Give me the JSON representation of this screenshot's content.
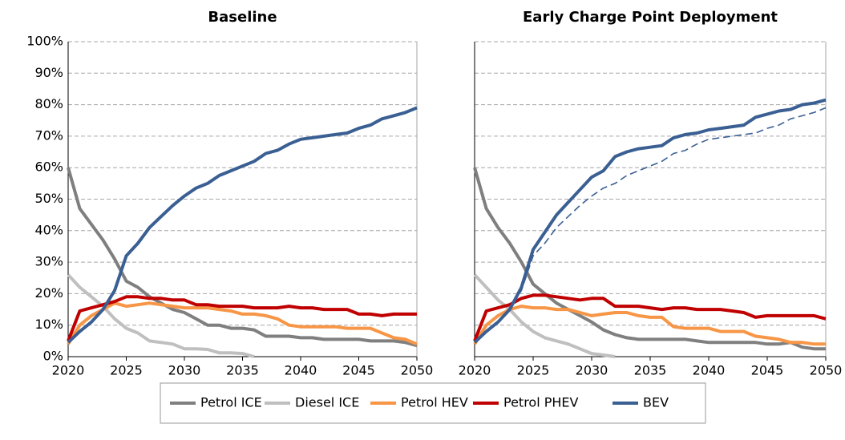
{
  "chart_data": [
    {
      "type": "line",
      "title": "Baseline",
      "x": [
        2020,
        2021,
        2022,
        2023,
        2024,
        2025,
        2026,
        2027,
        2028,
        2029,
        2030,
        2031,
        2032,
        2033,
        2034,
        2035,
        2036,
        2037,
        2038,
        2039,
        2040,
        2041,
        2042,
        2043,
        2044,
        2045,
        2046,
        2047,
        2048,
        2049,
        2050
      ],
      "xlim": [
        2020,
        2050
      ],
      "xticks": [
        2020,
        2025,
        2030,
        2035,
        2040,
        2045,
        2050
      ],
      "ylim": [
        0,
        100
      ],
      "yticks": [
        {
          "value": 0,
          "label": "0%"
        },
        {
          "value": 10,
          "label": "10%"
        },
        {
          "value": 20,
          "label": "20%"
        },
        {
          "value": 30,
          "label": "30%"
        },
        {
          "value": 40,
          "label": "40%"
        },
        {
          "value": 50,
          "label": "50%"
        },
        {
          "value": 60,
          "label": "60%"
        },
        {
          "value": 70,
          "label": "70%"
        },
        {
          "value": 80,
          "label": "80%"
        },
        {
          "value": 90,
          "label": "90%"
        },
        {
          "value": 100,
          "label": "100%"
        }
      ],
      "grid": true,
      "series": [
        {
          "name": "Petrol ICE",
          "color": "#7f7f7f",
          "values": [
            60,
            47,
            42,
            37,
            31,
            24,
            22,
            19,
            17,
            15,
            14,
            12,
            10,
            10,
            9,
            9,
            8.5,
            6.5,
            6.5,
            6.5,
            6,
            6,
            5.5,
            5.5,
            5.5,
            5.5,
            5,
            5,
            5,
            4.5,
            3.5
          ]
        },
        {
          "name": "Diesel ICE",
          "color": "#bfbfbf",
          "values": [
            26,
            22,
            19,
            16,
            12,
            9,
            7.5,
            5,
            4.5,
            4,
            2.5,
            2.5,
            2.3,
            1.2,
            1.2,
            1,
            0,
            null,
            null,
            null,
            null,
            null,
            null,
            null,
            null,
            null,
            null,
            null,
            null,
            null,
            null
          ]
        },
        {
          "name": "Petrol HEV",
          "color": "#f79646",
          "values": [
            4,
            10,
            13,
            15,
            17,
            16,
            16.5,
            17,
            16.5,
            16,
            15.5,
            15.5,
            15.5,
            15,
            14.5,
            13.5,
            13.5,
            13,
            12,
            10,
            9.5,
            9.5,
            9.5,
            9.5,
            9,
            9,
            9,
            7.5,
            6,
            5.5,
            4
          ]
        },
        {
          "name": "Petrol PHEV",
          "color": "#c00000",
          "values": [
            5,
            14.5,
            15.5,
            16.5,
            17.5,
            19,
            19,
            18.5,
            18.5,
            18,
            18,
            16.5,
            16.5,
            16,
            16,
            16,
            15.5,
            15.5,
            15.5,
            16,
            15.5,
            15.5,
            15,
            15,
            15,
            13.5,
            13.5,
            13,
            13.5,
            13.5,
            13.5
          ]
        },
        {
          "name": "BEV",
          "color": "#3a5f93",
          "values": [
            4.5,
            8,
            11,
            15,
            21,
            32,
            36,
            41,
            44.5,
            48,
            51,
            53.5,
            55,
            57.5,
            59,
            60.5,
            62,
            64.5,
            65.5,
            67.5,
            69,
            69.5,
            70,
            70.5,
            71,
            72.5,
            73.5,
            75.5,
            76.5,
            77.5,
            79
          ]
        }
      ]
    },
    {
      "type": "line",
      "title": "Early Charge Point Deployment",
      "x": [
        2020,
        2021,
        2022,
        2023,
        2024,
        2025,
        2026,
        2027,
        2028,
        2029,
        2030,
        2031,
        2032,
        2033,
        2034,
        2035,
        2036,
        2037,
        2038,
        2039,
        2040,
        2041,
        2042,
        2043,
        2044,
        2045,
        2046,
        2047,
        2048,
        2049,
        2050
      ],
      "xlim": [
        2020,
        2050
      ],
      "xticks": [
        2020,
        2025,
        2030,
        2035,
        2040,
        2045,
        2050
      ],
      "ylim": [
        0,
        100
      ],
      "yticks": [
        0,
        10,
        20,
        30,
        40,
        50,
        60,
        70,
        80,
        90,
        100
      ],
      "grid": true,
      "series": [
        {
          "color": "#7f7f7f",
          "values": [
            60,
            47,
            41,
            36,
            30,
            23,
            20,
            17,
            15,
            13,
            11,
            8.5,
            7,
            6,
            5.5,
            5.5,
            5.5,
            5.5,
            5.5,
            5,
            4.5,
            4.5,
            4.5,
            4.5,
            4.5,
            4,
            4,
            4.5,
            3,
            2.5,
            2.5
          ]
        },
        {
          "color": "#bfbfbf",
          "values": [
            26,
            22,
            18,
            15,
            11,
            8,
            6,
            5,
            4,
            2.5,
            1,
            0.5,
            0,
            null,
            null,
            null,
            null,
            null,
            null,
            null,
            null,
            null,
            null,
            null,
            null,
            null,
            null,
            null,
            null,
            null,
            null
          ]
        },
        {
          "color": "#f79646",
          "values": [
            4,
            10,
            13,
            15,
            16,
            15.5,
            15.5,
            15,
            15,
            14,
            13,
            13.5,
            14,
            14,
            13,
            12.5,
            12.5,
            9.5,
            9,
            9,
            9,
            8,
            8,
            8,
            6.5,
            6,
            5.5,
            4.5,
            4.5,
            4,
            4
          ]
        },
        {
          "color": "#c00000",
          "values": [
            5,
            14.5,
            15.5,
            16.5,
            18.5,
            19.5,
            19.5,
            19,
            18.5,
            18,
            18.5,
            18.5,
            16,
            16,
            16,
            15.5,
            15,
            15.5,
            15.5,
            15,
            15,
            15,
            14.5,
            14,
            12.5,
            13,
            13,
            13,
            13,
            13,
            12
          ]
        },
        {
          "color": "#3a5f93",
          "values": [
            4.5,
            8,
            11,
            15,
            22,
            34,
            39.5,
            45,
            49,
            53,
            57,
            59,
            63.5,
            65,
            66,
            66.5,
            67,
            69.5,
            70.5,
            71,
            72,
            72.5,
            73,
            73.5,
            76,
            77,
            78,
            78.5,
            80,
            80.5,
            81.5
          ]
        },
        {
          "color": "#3a5f93",
          "dashed": true,
          "values": [
            4.5,
            8,
            11,
            15,
            21,
            32,
            36,
            41,
            44.5,
            48,
            51,
            53.5,
            55,
            57.5,
            59,
            60.5,
            62,
            64.5,
            65.5,
            67.5,
            69,
            69.5,
            70,
            70.5,
            71,
            72.5,
            73.5,
            75.5,
            76.5,
            77.5,
            79
          ]
        }
      ]
    }
  ]
}
